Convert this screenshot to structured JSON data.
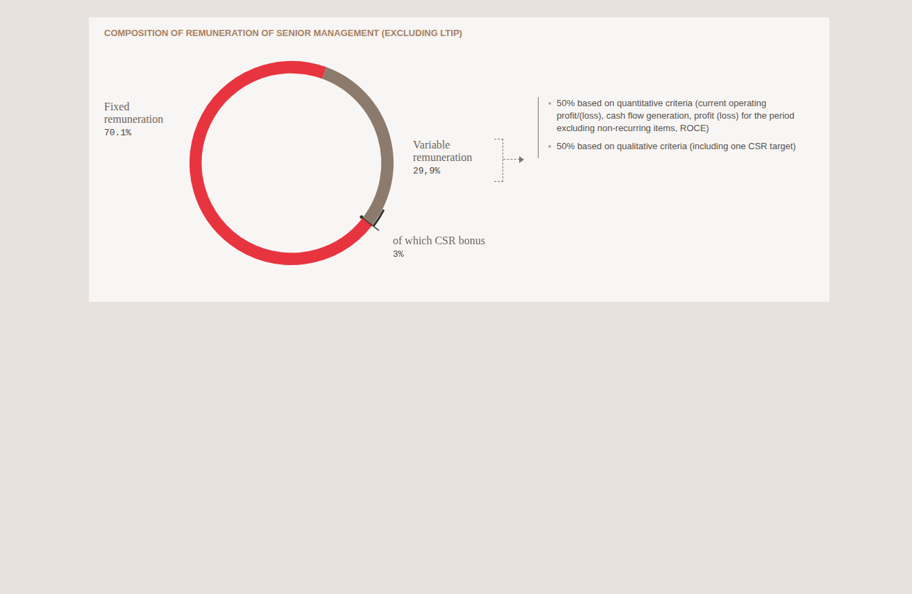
{
  "chart_data": {
    "type": "doughnut",
    "title": "COMPOSITION OF REMUNERATION OF SENIOR MANAGEMENT (EXCLUDING LTIP)",
    "categories": [
      "Fixed remuneration",
      "Variable remuneration"
    ],
    "values": [
      70.1,
      29.9
    ],
    "value_labels": [
      "70.1%",
      "29,9%"
    ],
    "colors": [
      "#e8343f",
      "#8c7b6d"
    ],
    "data_labels": true,
    "sub_segment": {
      "name": "of which CSR bonus",
      "value": 3,
      "value_label": "3%",
      "parent": "Variable remuneration"
    },
    "annotations": [
      "50% based on quantitative criteria (current operating profit/(loss), cash flow generation, profit (loss) for the period excluding non-recurring items, ROCE)",
      "50% based on qualitative criteria (including one CSR target)"
    ]
  }
}
